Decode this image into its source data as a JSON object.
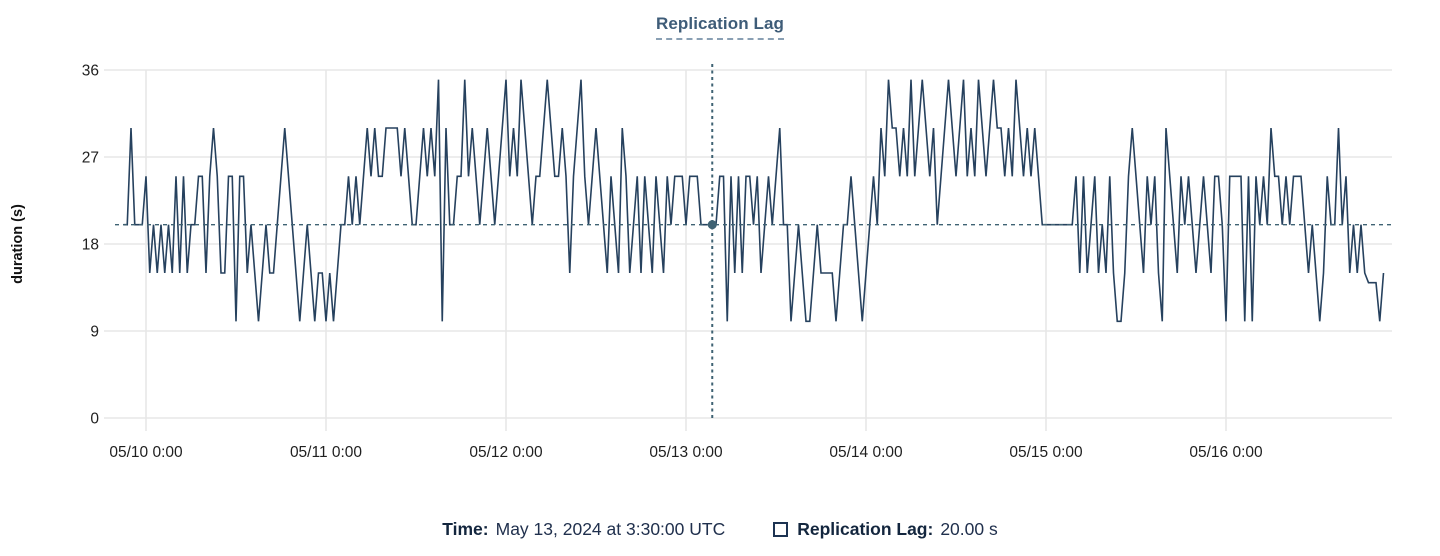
{
  "title": "Replication Lag",
  "footer": {
    "time_label": "Time:",
    "time_value": "May 13, 2024 at 3:30:00 UTC",
    "series_label": "Replication Lag:",
    "series_value": "20.00 s",
    "swatch_icon": "square-outline"
  },
  "colors": {
    "series_line": "#26415e",
    "crosshair": "#3f6273",
    "grid": "#e7e7e7",
    "axis_text": "#1f1f1f",
    "title_text": "#3e5c78",
    "legend_text": "#13263e"
  },
  "chart_data": {
    "type": "line",
    "title": "Replication Lag",
    "xlabel": "",
    "ylabel": "duration (s)",
    "ylim": [
      0,
      36
    ],
    "y_ticks": [
      0,
      9,
      18,
      27,
      36
    ],
    "x_tick_labels": [
      "05/10 0:00",
      "05/11 0:00",
      "05/12 0:00",
      "05/13 0:00",
      "05/14 0:00",
      "05/15 0:00",
      "05/16 0:00"
    ],
    "x_tick_indices": [
      6,
      54,
      102,
      150,
      198,
      246,
      294
    ],
    "x_start": "05/09 21:00",
    "interval_minutes": 30,
    "grid": true,
    "legend_position": "bottom",
    "series": [
      {
        "name": "Replication Lag",
        "unit": "s",
        "values": [
          20,
          20,
          30,
          20,
          20,
          20,
          25,
          15,
          20,
          15,
          20,
          15,
          20,
          15,
          25,
          15,
          25,
          15,
          20,
          20,
          25,
          25,
          15,
          25,
          30,
          25,
          15,
          15,
          25,
          25,
          10,
          25,
          25,
          15,
          20,
          15,
          10,
          15,
          20,
          15,
          15,
          20,
          25,
          30,
          25,
          20,
          15,
          10,
          15,
          20,
          15,
          10,
          15,
          15,
          10,
          15,
          10,
          15,
          20,
          20,
          25,
          20,
          25,
          20,
          25,
          30,
          25,
          30,
          25,
          25,
          30,
          30,
          30,
          30,
          25,
          30,
          25,
          20,
          20,
          25,
          30,
          25,
          30,
          25,
          35,
          10,
          30,
          20,
          20,
          25,
          25,
          35,
          25,
          30,
          25,
          20,
          25,
          30,
          25,
          20,
          25,
          30,
          35,
          25,
          30,
          25,
          35,
          30,
          25,
          20,
          25,
          25,
          30,
          35,
          30,
          25,
          25,
          30,
          25,
          15,
          25,
          30,
          35,
          25,
          20,
          25,
          30,
          25,
          20,
          15,
          25,
          20,
          15,
          30,
          25,
          15,
          20,
          25,
          15,
          25,
          20,
          15,
          25,
          20,
          15,
          25,
          20,
          25,
          25,
          25,
          20,
          25,
          25,
          25,
          20,
          20,
          20,
          20,
          20,
          25,
          25,
          10,
          25,
          15,
          25,
          15,
          25,
          25,
          20,
          25,
          15,
          20,
          25,
          20,
          25,
          30,
          20,
          20,
          10,
          15,
          20,
          15,
          10,
          10,
          15,
          20,
          15,
          15,
          15,
          15,
          10,
          15,
          20,
          20,
          25,
          20,
          15,
          10,
          15,
          20,
          25,
          20,
          30,
          25,
          35,
          30,
          30,
          25,
          30,
          25,
          35,
          25,
          30,
          35,
          30,
          25,
          30,
          20,
          25,
          30,
          35,
          30,
          25,
          30,
          35,
          25,
          30,
          25,
          35,
          30,
          25,
          30,
          35,
          30,
          30,
          25,
          30,
          25,
          35,
          30,
          25,
          30,
          25,
          30,
          25,
          20,
          20,
          20,
          20,
          20,
          20,
          20,
          20,
          20,
          25,
          15,
          25,
          15,
          20,
          25,
          15,
          20,
          15,
          25,
          15,
          10,
          10,
          15,
          25,
          30,
          25,
          20,
          15,
          25,
          20,
          25,
          15,
          10,
          30,
          25,
          20,
          15,
          25,
          20,
          25,
          20,
          15,
          20,
          25,
          20,
          15,
          25,
          25,
          20,
          10,
          25,
          25,
          25,
          25,
          10,
          25,
          10,
          25,
          20,
          25,
          20,
          30,
          25,
          25,
          20,
          25,
          20,
          25,
          25,
          25,
          20,
          15,
          20,
          15,
          10,
          15,
          25,
          20,
          20,
          30,
          20,
          25,
          15,
          20,
          15,
          20,
          15,
          14,
          14,
          14,
          10,
          15
        ]
      }
    ],
    "crosshair": {
      "index": 157,
      "value": 20,
      "time_label": "May 13, 2024 at 3:30:00 UTC",
      "value_label": "20.00 s"
    }
  }
}
